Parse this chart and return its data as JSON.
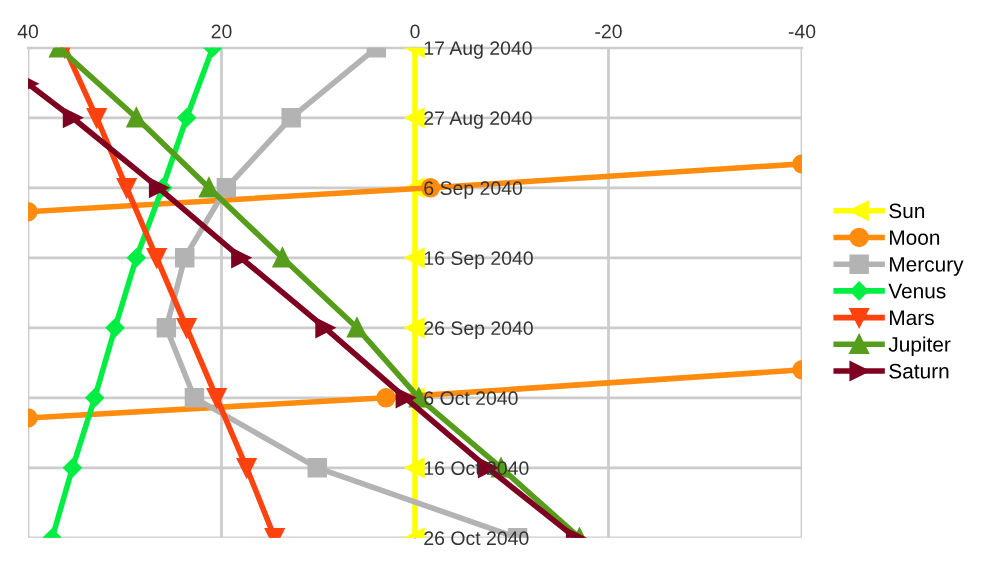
{
  "chart_data": {
    "type": "line",
    "orientation": "horizontal",
    "x": [
      "2040-08-17",
      "2040-08-27",
      "2040-09-06",
      "2040-09-16",
      "2040-09-26",
      "2040-10-06",
      "2040-10-16",
      "2040-10-26"
    ],
    "series": [
      {
        "name": "Sun",
        "color": "#ffff00",
        "marker": "triangle_left",
        "values": [
          0,
          0,
          0,
          0,
          0,
          0,
          0,
          0
        ]
      },
      {
        "name": "Moon",
        "color": "#ff8c0e",
        "marker": "circle",
        "x": [
          "2040-09-02T14:00",
          "2040-09-06",
          "2040-09-09T10:00",
          "2040-09-20",
          "2040-10-02",
          "2040-10-06",
          "2040-10-08T21:00"
        ],
        "values": [
          -40,
          -1.6,
          40,
          null,
          -40,
          3,
          40
        ]
      },
      {
        "name": "Mercury",
        "color": "#b3b3b3",
        "marker": "square",
        "values": [
          4,
          12.8,
          19.5,
          23.8,
          25.7,
          22.8,
          10.1,
          -10.6
        ]
      },
      {
        "name": "Venus",
        "color": "#00ee44",
        "marker": "diamond",
        "values": [
          20.9,
          23.6,
          26.1,
          28.8,
          31,
          33.1,
          35.4,
          37.5
        ]
      },
      {
        "name": "Mars",
        "color": "#ff420e",
        "marker": "triangle_down",
        "values": [
          36.2,
          32.9,
          29.8,
          26.7,
          23.6,
          20.5,
          17.4,
          14.5
        ]
      },
      {
        "name": "Jupiter",
        "color": "#579d1c",
        "marker": "triangle",
        "values": [
          36.8,
          28.8,
          21.3,
          13.7,
          6,
          -0.4,
          -8.9,
          -17
        ]
      },
      {
        "name": "Saturn",
        "color": "#7e0021",
        "marker": "triangle_right",
        "x": [
          "2040-08-22T03:00",
          "2040-08-27",
          "2040-09-06",
          "2040-09-16",
          "2040-09-26",
          "2040-10-06",
          "2040-10-16",
          "2040-10-26"
        ],
        "values": [
          40,
          35.4,
          26.5,
          18,
          9.3,
          1,
          -7.5,
          -16.6
        ]
      }
    ],
    "xlim": [
      40,
      -40
    ],
    "xticks": [
      40,
      20,
      0,
      -20,
      -40
    ],
    "ylim": [
      "2040-10-26",
      "2040-08-17"
    ],
    "yticks": [
      {
        "value": "2040-08-17",
        "label": "17 Aug 2040"
      },
      {
        "value": "2040-08-27",
        "label": "27 Aug 2040"
      },
      {
        "value": "2040-09-06",
        "label": "6 Sep 2040"
      },
      {
        "value": "2040-09-16",
        "label": "16 Sep 2040"
      },
      {
        "value": "2040-09-26",
        "label": "26 Sep 2040"
      },
      {
        "value": "2040-10-06",
        "label": "6 Oct 2040"
      },
      {
        "value": "2040-10-16",
        "label": "16 Oct 2040"
      },
      {
        "value": "2040-10-26",
        "label": "26 Oct 2040"
      }
    ],
    "grid": true,
    "legend": "right"
  }
}
